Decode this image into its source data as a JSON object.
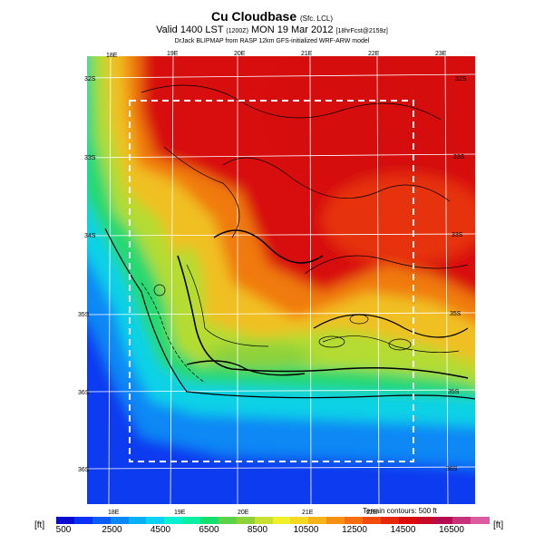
{
  "header": {
    "title": "Cu Cloudbase",
    "title_suffix": "(Sfc. LCL)",
    "valid_prefix": "Valid 1400 LST",
    "valid_utc": "(1200Z)",
    "valid_date": "MON 19 Mar 2012",
    "forecast_tag": "[18hrFcst@2159z]",
    "source": "DrJack BLIPMAP from RASP 12km GFS-initialized WRF-ARW model"
  },
  "map": {
    "top_lon_labels": [
      "18E",
      "19E",
      "20E",
      "21E",
      "22E",
      "23E"
    ],
    "bottom_lon_labels": [
      "18E",
      "19E",
      "20E",
      "21E",
      "22E"
    ],
    "left_lat_labels": [
      "32S",
      "33S",
      "34S",
      "35S",
      "36S",
      "36S"
    ],
    "right_lat_labels": [
      "32S",
      "33S",
      "33S",
      "35S",
      "35S",
      "36S"
    ],
    "terrain_note": "Terrain contours: 500 ft"
  },
  "colorbar": {
    "unit": "[ft]",
    "labels": [
      "500",
      "2500",
      "4500",
      "6500",
      "8500",
      "10500",
      "12500",
      "14500",
      "16500"
    ],
    "colors": [
      "#0a0ad2",
      "#0a2ff5",
      "#0a5cf5",
      "#0a88f5",
      "#0ab0f5",
      "#0ad2f0",
      "#0af0d0",
      "#0af0a0",
      "#14e070",
      "#5ad24a",
      "#8ed23a",
      "#c8e030",
      "#f0f028",
      "#f5d820",
      "#f5b41a",
      "#f59014",
      "#f56e10",
      "#f04a0c",
      "#e6280a",
      "#dc0a0a",
      "#c80a28",
      "#b40a50",
      "#c83278",
      "#dc5aa0"
    ]
  }
}
